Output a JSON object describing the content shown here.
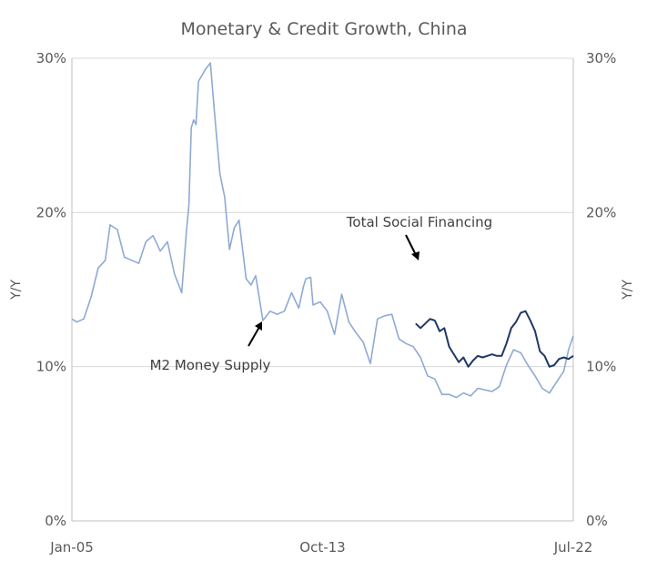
{
  "chart_data": {
    "type": "line",
    "title": "Monetary & Credit Growth, China",
    "ylabel_left": "Y/Y",
    "ylabel_right": "Y/Y",
    "ylim": [
      0,
      30
    ],
    "yticks": [
      {
        "value": 0,
        "label": "0%"
      },
      {
        "value": 10,
        "label": "10%"
      },
      {
        "value": 20,
        "label": "20%"
      },
      {
        "value": 30,
        "label": "30%"
      }
    ],
    "xlim": [
      "2005-01",
      "2022-07"
    ],
    "xticks": [
      {
        "value": "2005-01",
        "label": "Jan-05"
      },
      {
        "value": "2013-10",
        "label": "Oct-13"
      },
      {
        "value": "2022-07",
        "label": "Jul-22"
      }
    ],
    "grid": true,
    "series": [
      {
        "name": "M2 Money Supply",
        "color": "#8eaad4",
        "points": [
          [
            "2005-01",
            13.1
          ],
          [
            "2005-03",
            12.9
          ],
          [
            "2005-06",
            13.1
          ],
          [
            "2005-09",
            14.5
          ],
          [
            "2005-12",
            16.4
          ],
          [
            "2006-03",
            16.9
          ],
          [
            "2006-05",
            19.2
          ],
          [
            "2006-08",
            18.9
          ],
          [
            "2006-11",
            17.1
          ],
          [
            "2007-02",
            16.9
          ],
          [
            "2007-05",
            16.7
          ],
          [
            "2007-08",
            18.1
          ],
          [
            "2007-11",
            18.5
          ],
          [
            "2008-02",
            17.5
          ],
          [
            "2008-05",
            18.1
          ],
          [
            "2008-08",
            16.0
          ],
          [
            "2008-11",
            14.8
          ],
          [
            "2009-01",
            18.8
          ],
          [
            "2009-02",
            20.5
          ],
          [
            "2009-03",
            25.5
          ],
          [
            "2009-04",
            26.0
          ],
          [
            "2009-05",
            25.7
          ],
          [
            "2009-06",
            28.5
          ],
          [
            "2009-09",
            29.3
          ],
          [
            "2009-11",
            29.7
          ],
          [
            "2010-01",
            26.0
          ],
          [
            "2010-03",
            22.5
          ],
          [
            "2010-05",
            21.0
          ],
          [
            "2010-07",
            17.6
          ],
          [
            "2010-09",
            19.0
          ],
          [
            "2010-11",
            19.5
          ],
          [
            "2011-02",
            15.7
          ],
          [
            "2011-04",
            15.3
          ],
          [
            "2011-06",
            15.9
          ],
          [
            "2011-09",
            13.0
          ],
          [
            "2011-12",
            13.6
          ],
          [
            "2012-03",
            13.4
          ],
          [
            "2012-06",
            13.6
          ],
          [
            "2012-09",
            14.8
          ],
          [
            "2012-12",
            13.8
          ],
          [
            "2013-02",
            15.2
          ],
          [
            "2013-03",
            15.7
          ],
          [
            "2013-05",
            15.8
          ],
          [
            "2013-06",
            14.0
          ],
          [
            "2013-09",
            14.2
          ],
          [
            "2013-12",
            13.6
          ],
          [
            "2014-03",
            12.1
          ],
          [
            "2014-06",
            14.7
          ],
          [
            "2014-09",
            12.9
          ],
          [
            "2014-12",
            12.2
          ],
          [
            "2015-03",
            11.6
          ],
          [
            "2015-06",
            10.2
          ],
          [
            "2015-09",
            13.1
          ],
          [
            "2015-12",
            13.3
          ],
          [
            "2016-03",
            13.4
          ],
          [
            "2016-06",
            11.8
          ],
          [
            "2016-09",
            11.5
          ],
          [
            "2016-12",
            11.3
          ],
          [
            "2017-03",
            10.6
          ],
          [
            "2017-06",
            9.4
          ],
          [
            "2017-09",
            9.2
          ],
          [
            "2017-12",
            8.2
          ],
          [
            "2018-03",
            8.2
          ],
          [
            "2018-06",
            8.0
          ],
          [
            "2018-09",
            8.3
          ],
          [
            "2018-12",
            8.1
          ],
          [
            "2019-03",
            8.6
          ],
          [
            "2019-06",
            8.5
          ],
          [
            "2019-09",
            8.4
          ],
          [
            "2019-12",
            8.7
          ],
          [
            "2020-03",
            10.1
          ],
          [
            "2020-06",
            11.1
          ],
          [
            "2020-09",
            10.9
          ],
          [
            "2020-12",
            10.1
          ],
          [
            "2021-03",
            9.4
          ],
          [
            "2021-06",
            8.6
          ],
          [
            "2021-09",
            8.3
          ],
          [
            "2021-12",
            9.0
          ],
          [
            "2022-03",
            9.7
          ],
          [
            "2022-05",
            11.1
          ],
          [
            "2022-07",
            12.0
          ]
        ]
      },
      {
        "name": "Total Social Financing",
        "color": "#1f3864",
        "points": [
          [
            "2017-01",
            12.8
          ],
          [
            "2017-03",
            12.5
          ],
          [
            "2017-05",
            12.8
          ],
          [
            "2017-07",
            13.1
          ],
          [
            "2017-09",
            13.0
          ],
          [
            "2017-11",
            12.3
          ],
          [
            "2018-01",
            12.5
          ],
          [
            "2018-03",
            11.3
          ],
          [
            "2018-05",
            10.8
          ],
          [
            "2018-07",
            10.3
          ],
          [
            "2018-09",
            10.6
          ],
          [
            "2018-11",
            10.0
          ],
          [
            "2019-01",
            10.4
          ],
          [
            "2019-03",
            10.7
          ],
          [
            "2019-05",
            10.6
          ],
          [
            "2019-07",
            10.7
          ],
          [
            "2019-09",
            10.8
          ],
          [
            "2019-11",
            10.7
          ],
          [
            "2020-01",
            10.7
          ],
          [
            "2020-03",
            11.5
          ],
          [
            "2020-05",
            12.5
          ],
          [
            "2020-07",
            12.9
          ],
          [
            "2020-09",
            13.5
          ],
          [
            "2020-11",
            13.6
          ],
          [
            "2021-01",
            13.0
          ],
          [
            "2021-03",
            12.3
          ],
          [
            "2021-05",
            11.0
          ],
          [
            "2021-07",
            10.7
          ],
          [
            "2021-09",
            10.0
          ],
          [
            "2021-11",
            10.1
          ],
          [
            "2022-01",
            10.5
          ],
          [
            "2022-03",
            10.6
          ],
          [
            "2022-05",
            10.5
          ],
          [
            "2022-07",
            10.7
          ]
        ]
      }
    ],
    "annotations": [
      {
        "text": "Total Social Financing",
        "series": "Total Social Financing"
      },
      {
        "text": "M2 Money Supply",
        "series": "M2 Money Supply"
      }
    ]
  }
}
